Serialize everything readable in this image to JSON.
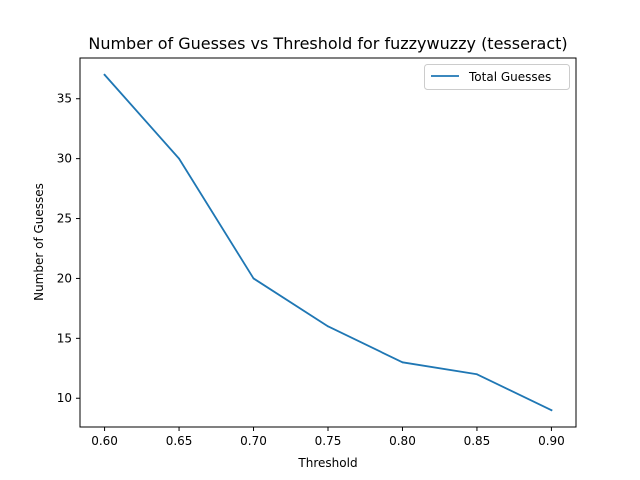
{
  "chart_data": {
    "type": "line",
    "title": "Number of Guesses vs Threshold for fuzzywuzzy (tesseract)",
    "xlabel": "Threshold",
    "ylabel": "Number of Guesses",
    "x": [
      0.6,
      0.65,
      0.7,
      0.75,
      0.8,
      0.85,
      0.9
    ],
    "xticks": [
      "0.60",
      "0.65",
      "0.70",
      "0.75",
      "0.80",
      "0.85",
      "0.90"
    ],
    "yticks": [
      "10",
      "15",
      "20",
      "25",
      "30",
      "35"
    ],
    "xlim": [
      0.5835,
      0.9165
    ],
    "ylim": [
      7.6,
      38.4
    ],
    "series": [
      {
        "name": "Total Guesses",
        "color": "#1f77b4",
        "values": [
          37,
          30,
          20,
          16,
          13,
          12,
          9
        ]
      }
    ],
    "legend": {
      "position": "top-right"
    },
    "grid": false
  }
}
